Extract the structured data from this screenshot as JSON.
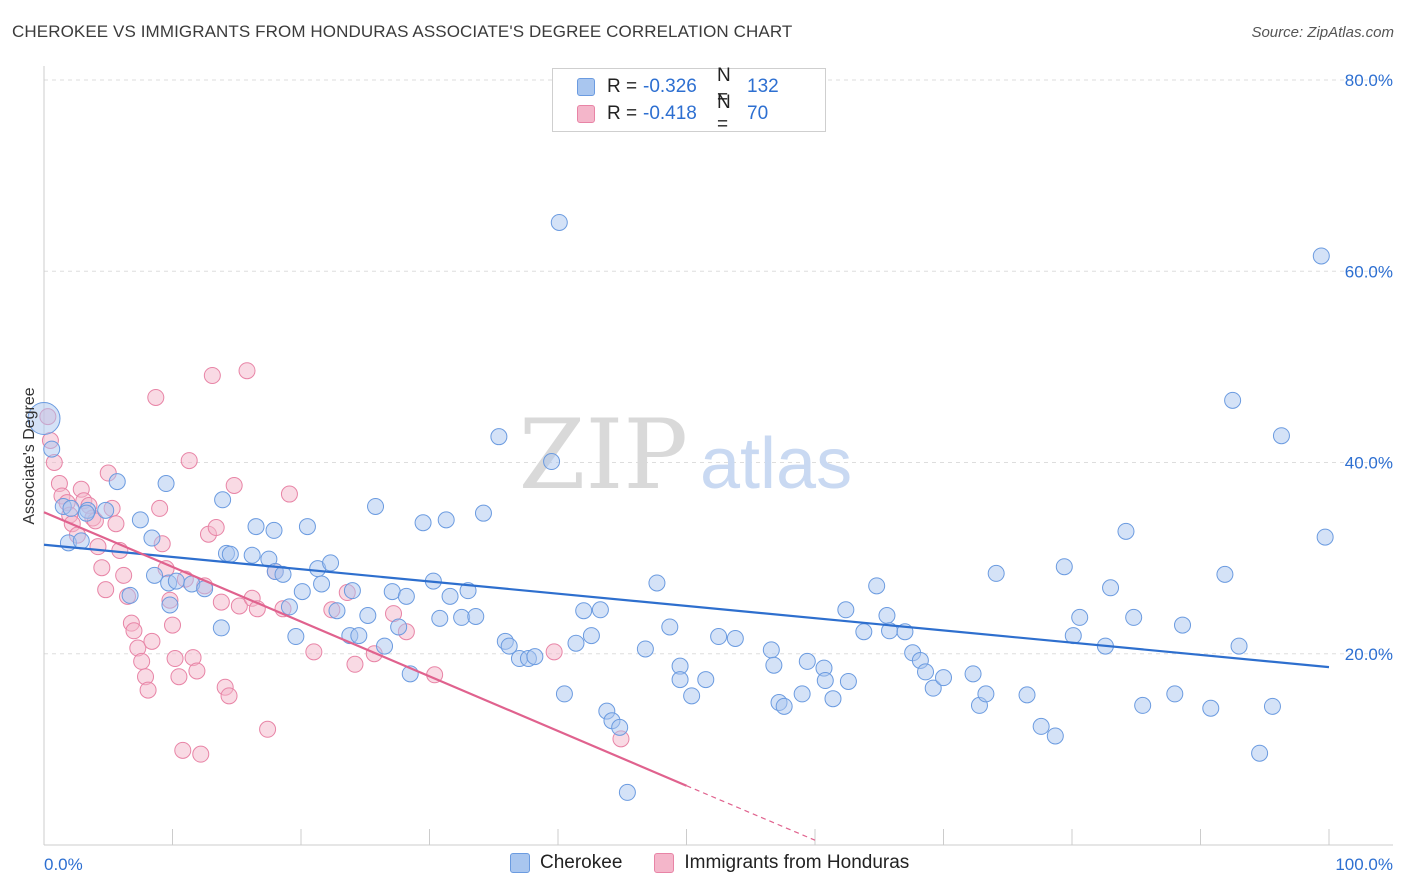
{
  "header": {
    "title": "CHEROKEE VS IMMIGRANTS FROM HONDURAS ASSOCIATE'S DEGREE CORRELATION CHART",
    "source": "Source: ZipAtlas.com"
  },
  "watermark": {
    "zip": "ZIP",
    "atlas": "atlas"
  },
  "colors": {
    "blue_fill": "#a9c6ef",
    "blue_stroke": "#6b9be0",
    "blue_line": "#2e6fce",
    "pink_fill": "#f4b6ca",
    "pink_stroke": "#e884a6",
    "pink_line": "#e0628e",
    "axis_text": "#2d6fd1",
    "grid": "#dddddd"
  },
  "legend": {
    "r_label": "R =",
    "n_label": "N =",
    "series": [
      {
        "name": "Cherokee",
        "r": "-0.326",
        "n": "132"
      },
      {
        "name": "Immigrants from Honduras",
        "r": "-0.418",
        "n": "70"
      }
    ]
  },
  "chart_data": {
    "type": "scatter",
    "title": "CHEROKEE VS IMMIGRANTS FROM HONDURAS ASSOCIATE'S DEGREE CORRELATION CHART",
    "xlabel": "",
    "ylabel": "Associate's Degree",
    "xlim": [
      0,
      100
    ],
    "ylim": [
      0,
      80
    ],
    "x_tick_labels": [
      "0.0%",
      "100.0%"
    ],
    "y_ticks": [
      20,
      40,
      60,
      80
    ],
    "y_tick_labels": [
      "20.0%",
      "40.0%",
      "60.0%",
      "80.0%"
    ],
    "grid": true,
    "legend_position": "top-center",
    "series": [
      {
        "name": "Cherokee",
        "trend": {
          "x": [
            0,
            100
          ],
          "y": [
            31.4,
            18.6
          ]
        },
        "points": [
          [
            0.0,
            44.6
          ],
          [
            0.6,
            41.4
          ],
          [
            1.5,
            35.4
          ],
          [
            1.9,
            31.6
          ],
          [
            2.1,
            35.2
          ],
          [
            2.9,
            31.8
          ],
          [
            3.4,
            35.0
          ],
          [
            5.7,
            38.0
          ],
          [
            3.3,
            34.7
          ],
          [
            4.8,
            35.0
          ],
          [
            7.5,
            34.0
          ],
          [
            8.4,
            32.1
          ],
          [
            8.6,
            28.2
          ],
          [
            9.5,
            37.8
          ],
          [
            6.7,
            26.1
          ],
          [
            9.7,
            27.4
          ],
          [
            9.8,
            25.1
          ],
          [
            10.3,
            27.6
          ],
          [
            11.5,
            27.3
          ],
          [
            12.5,
            26.8
          ],
          [
            13.8,
            22.7
          ],
          [
            14.2,
            30.5
          ],
          [
            14.5,
            30.4
          ],
          [
            13.9,
            36.1
          ],
          [
            16.2,
            30.3
          ],
          [
            16.5,
            33.3
          ],
          [
            17.5,
            29.9
          ],
          [
            17.9,
            32.9
          ],
          [
            18.0,
            28.6
          ],
          [
            18.6,
            28.3
          ],
          [
            19.1,
            24.9
          ],
          [
            19.6,
            21.8
          ],
          [
            20.1,
            26.5
          ],
          [
            20.5,
            33.3
          ],
          [
            21.3,
            28.9
          ],
          [
            21.6,
            27.3
          ],
          [
            22.3,
            29.5
          ],
          [
            22.8,
            24.5
          ],
          [
            23.8,
            21.9
          ],
          [
            24.0,
            26.6
          ],
          [
            24.5,
            21.9
          ],
          [
            25.2,
            24.0
          ],
          [
            25.8,
            35.4
          ],
          [
            26.5,
            20.8
          ],
          [
            27.1,
            26.5
          ],
          [
            27.6,
            22.8
          ],
          [
            28.2,
            26.0
          ],
          [
            28.5,
            17.9
          ],
          [
            29.5,
            33.7
          ],
          [
            30.3,
            27.6
          ],
          [
            30.8,
            23.7
          ],
          [
            31.6,
            26.0
          ],
          [
            31.3,
            34.0
          ],
          [
            32.5,
            23.8
          ],
          [
            33.0,
            26.6
          ],
          [
            33.6,
            23.9
          ],
          [
            34.2,
            34.7
          ],
          [
            35.9,
            21.3
          ],
          [
            36.2,
            20.8
          ],
          [
            37.0,
            19.5
          ],
          [
            37.7,
            19.5
          ],
          [
            38.2,
            19.7
          ],
          [
            39.5,
            40.1
          ],
          [
            35.4,
            42.7
          ],
          [
            40.5,
            15.8
          ],
          [
            41.4,
            21.1
          ],
          [
            42.0,
            24.5
          ],
          [
            42.6,
            21.9
          ],
          [
            43.3,
            24.6
          ],
          [
            43.8,
            14.0
          ],
          [
            44.2,
            13.0
          ],
          [
            44.8,
            12.3
          ],
          [
            45.4,
            5.5
          ],
          [
            46.8,
            20.5
          ],
          [
            47.7,
            27.4
          ],
          [
            48.7,
            22.8
          ],
          [
            49.5,
            18.7
          ],
          [
            49.5,
            17.3
          ],
          [
            50.4,
            15.6
          ],
          [
            51.5,
            17.3
          ],
          [
            52.5,
            21.8
          ],
          [
            53.8,
            21.6
          ],
          [
            56.6,
            20.4
          ],
          [
            56.8,
            18.8
          ],
          [
            57.2,
            14.9
          ],
          [
            57.6,
            14.5
          ],
          [
            59.0,
            15.8
          ],
          [
            59.4,
            19.2
          ],
          [
            60.7,
            18.5
          ],
          [
            60.8,
            17.2
          ],
          [
            61.4,
            15.3
          ],
          [
            62.4,
            24.6
          ],
          [
            62.6,
            17.1
          ],
          [
            63.8,
            22.3
          ],
          [
            64.8,
            27.1
          ],
          [
            65.6,
            24.0
          ],
          [
            65.8,
            22.4
          ],
          [
            67.0,
            22.3
          ],
          [
            67.6,
            20.1
          ],
          [
            68.2,
            19.3
          ],
          [
            68.6,
            18.1
          ],
          [
            69.2,
            16.4
          ],
          [
            70.0,
            17.5
          ],
          [
            72.3,
            17.9
          ],
          [
            72.8,
            14.6
          ],
          [
            73.3,
            15.8
          ],
          [
            74.1,
            28.4
          ],
          [
            76.5,
            15.7
          ],
          [
            77.6,
            12.4
          ],
          [
            78.7,
            11.4
          ],
          [
            79.4,
            29.1
          ],
          [
            80.1,
            21.9
          ],
          [
            80.6,
            23.8
          ],
          [
            82.6,
            20.8
          ],
          [
            83.0,
            26.9
          ],
          [
            84.2,
            32.8
          ],
          [
            84.8,
            23.8
          ],
          [
            85.5,
            14.6
          ],
          [
            88.0,
            15.8
          ],
          [
            88.6,
            23.0
          ],
          [
            90.8,
            14.3
          ],
          [
            91.9,
            28.3
          ],
          [
            92.5,
            46.5
          ],
          [
            93.0,
            20.8
          ],
          [
            94.6,
            9.6
          ],
          [
            95.6,
            14.5
          ],
          [
            96.3,
            42.8
          ],
          [
            99.4,
            61.6
          ],
          [
            99.7,
            32.2
          ],
          [
            40.1,
            65.1
          ]
        ]
      },
      {
        "name": "Immigrants from Honduras",
        "trend": {
          "x": [
            0,
            50
          ],
          "y": [
            34.8,
            6.2
          ],
          "dashed_x": [
            50,
            60
          ],
          "dashed_y": [
            6.2,
            0.5
          ]
        },
        "points": [
          [
            0.3,
            44.8
          ],
          [
            0.5,
            42.3
          ],
          [
            0.8,
            40.0
          ],
          [
            1.2,
            37.8
          ],
          [
            1.4,
            36.5
          ],
          [
            1.8,
            35.8
          ],
          [
            2.0,
            34.5
          ],
          [
            2.2,
            33.6
          ],
          [
            2.6,
            32.4
          ],
          [
            2.9,
            37.2
          ],
          [
            3.1,
            36.0
          ],
          [
            3.5,
            35.5
          ],
          [
            3.8,
            34.2
          ],
          [
            4.0,
            33.9
          ],
          [
            4.2,
            31.2
          ],
          [
            4.5,
            29.0
          ],
          [
            4.8,
            26.7
          ],
          [
            5.0,
            38.9
          ],
          [
            5.3,
            35.2
          ],
          [
            5.6,
            33.6
          ],
          [
            5.9,
            30.8
          ],
          [
            6.2,
            28.2
          ],
          [
            6.5,
            26.0
          ],
          [
            6.8,
            23.2
          ],
          [
            7.0,
            22.4
          ],
          [
            7.3,
            20.6
          ],
          [
            7.6,
            19.2
          ],
          [
            7.9,
            17.6
          ],
          [
            8.1,
            16.2
          ],
          [
            8.4,
            21.3
          ],
          [
            8.7,
            46.8
          ],
          [
            9.0,
            35.2
          ],
          [
            9.2,
            31.5
          ],
          [
            9.5,
            28.9
          ],
          [
            9.8,
            25.6
          ],
          [
            10.0,
            23.0
          ],
          [
            10.2,
            19.5
          ],
          [
            10.5,
            17.6
          ],
          [
            10.8,
            9.9
          ],
          [
            11.0,
            27.8
          ],
          [
            11.3,
            40.2
          ],
          [
            11.6,
            19.6
          ],
          [
            11.9,
            18.2
          ],
          [
            12.2,
            9.5
          ],
          [
            12.5,
            27.1
          ],
          [
            12.8,
            32.5
          ],
          [
            13.1,
            49.1
          ],
          [
            13.4,
            33.2
          ],
          [
            13.8,
            25.4
          ],
          [
            14.1,
            16.5
          ],
          [
            14.4,
            15.6
          ],
          [
            14.8,
            37.6
          ],
          [
            15.2,
            25.0
          ],
          [
            15.8,
            49.6
          ],
          [
            16.2,
            25.8
          ],
          [
            16.6,
            24.7
          ],
          [
            17.4,
            12.1
          ],
          [
            18.0,
            28.6
          ],
          [
            18.6,
            24.7
          ],
          [
            19.1,
            36.7
          ],
          [
            21.0,
            20.2
          ],
          [
            22.4,
            24.6
          ],
          [
            23.6,
            26.4
          ],
          [
            24.2,
            18.9
          ],
          [
            25.7,
            20.0
          ],
          [
            27.2,
            24.2
          ],
          [
            28.2,
            22.3
          ],
          [
            30.4,
            17.8
          ],
          [
            39.7,
            20.2
          ],
          [
            44.9,
            11.1
          ]
        ]
      }
    ]
  },
  "bottom_legend": [
    {
      "label": "Cherokee"
    },
    {
      "label": "Immigrants from Honduras"
    }
  ]
}
